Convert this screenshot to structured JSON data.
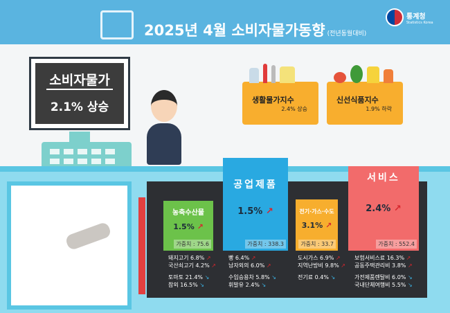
{
  "header": {
    "title": "2025년 4월 소비자물가동향",
    "subtitle": "(전년동월대비)",
    "logo_text": "통계청",
    "logo_sub": "Statistics Korea",
    "icon": "shopping-basket-icon"
  },
  "register": {
    "title": "소비자물가",
    "value": "2.1% 상승"
  },
  "baskets": [
    {
      "name": "생활물가지수",
      "value": "2.4% 상승"
    },
    {
      "name": "신선식품지수",
      "value": "1.9% 하락"
    }
  ],
  "categories": [
    {
      "name": "농축수산물",
      "value": "1.5%",
      "direction": "up",
      "weight": "가중치 : 75.6",
      "color": "#6cc24a",
      "up_items": [
        "돼지고기 6.8%",
        "국산쇠고기 4.2%"
      ],
      "down_items": [
        "토마토 21.4%",
        "참외 16.5%"
      ]
    },
    {
      "name": "공업제품",
      "value": "1.5%",
      "direction": "up",
      "weight": "가중치 : 338.3",
      "color": "#29a9e1",
      "up_items": [
        "빵 6.4%",
        "남자외의 6.0%"
      ],
      "down_items": [
        "수입승용차 5.8%",
        "휘발유 2.4%"
      ]
    },
    {
      "name": "전기·가스·수도",
      "value": "3.1%",
      "direction": "up",
      "weight": "가중치 : 33.7",
      "color": "#f7ae2e",
      "up_items": [
        "도시가스 6.9%",
        "지역난방비 9.8%"
      ],
      "down_items": [
        "전기료 0.4%"
      ]
    },
    {
      "name": "서비스",
      "value": "2.4%",
      "direction": "up",
      "weight": "가중치 : 552.4",
      "color": "#f26b6b",
      "up_items": [
        "보험서비스료 16.3%",
        "공동주택관리비 3.8%"
      ],
      "down_items": [
        "가전제품렌탈비 6.0%",
        "국내단체여행비 5.5%"
      ]
    }
  ],
  "arrows": {
    "up": "↗",
    "down": "↘"
  }
}
